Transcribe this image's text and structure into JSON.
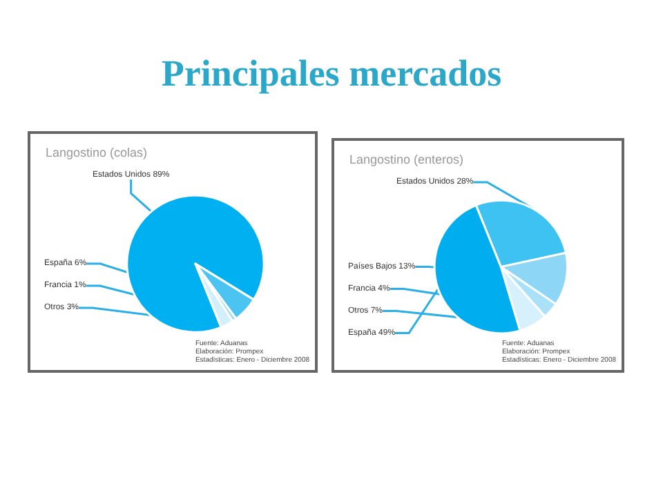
{
  "chart_data": [
    {
      "type": "other",
      "title": "Principales mercados"
    },
    {
      "type": "pie",
      "title": "Langostino (colas)",
      "categories": [
        "Estados Unidos",
        "España",
        "Francia",
        "Otros"
      ],
      "values": [
        89,
        6,
        1,
        3
      ],
      "value_labels": [
        "89%",
        "6%",
        "1%",
        "3%"
      ],
      "colors": [
        "#00b0f0",
        "#4cc4f2",
        "#9edcf6",
        "#d3effb"
      ],
      "legend": false,
      "annotations": [
        "Fuente: Aduanas",
        "Elaboración: Prompex",
        "Estadísticas: Enero - Diciembre 2008"
      ]
    },
    {
      "type": "pie",
      "title": "Langostino (enteros)",
      "categories": [
        "Estados Unidos",
        "Países Bajos",
        "Francia",
        "Otros",
        "España"
      ],
      "values": [
        28,
        13,
        4,
        7,
        49
      ],
      "value_labels": [
        "28%",
        "13%",
        "4%",
        "7%",
        "49%"
      ],
      "colors": [
        "#3ec2f2",
        "#8ed6f6",
        "#a9e1f8",
        "#d6f1fb",
        "#00aeef"
      ],
      "legend": false,
      "annotations": [
        "Fuente: Aduanas",
        "Elaboración: Prompex",
        "Estadísticas: Enero - Diciembre 2008"
      ]
    }
  ]
}
